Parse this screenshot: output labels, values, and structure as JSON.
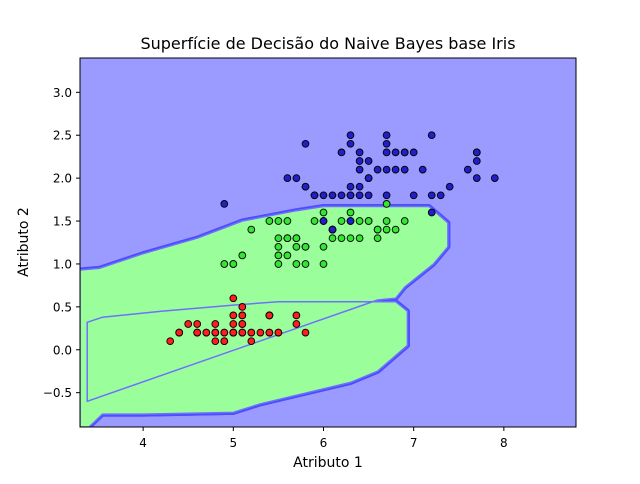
{
  "chart_data": {
    "type": "scatter",
    "title": "Superfície de Decisão do Naive Bayes base Iris",
    "xlabel": "Atributo 1",
    "ylabel": "Atributo 2",
    "xlim": [
      3.3,
      8.8
    ],
    "ylim": [
      -0.9,
      3.4
    ],
    "x_ticks": [
      4,
      5,
      6,
      7,
      8
    ],
    "y_ticks": [
      -0.5,
      0.0,
      0.5,
      1.0,
      1.5,
      2.0,
      2.5,
      3.0
    ],
    "x_tick_labels": [
      "4",
      "5",
      "6",
      "7",
      "8"
    ],
    "y_tick_labels": [
      "−0.5",
      "0.0",
      "0.5",
      "1.0",
      "1.5",
      "2.0",
      "2.5",
      "3.0"
    ],
    "grid": false,
    "legend": "none",
    "regions": [
      {
        "class": "0",
        "color": "#ff9a9a",
        "polygon": [
          [
            3.55,
            -0.75
          ],
          [
            3.38,
            -0.6
          ],
          [
            3.38,
            0.32
          ],
          [
            3.55,
            0.38
          ],
          [
            4.2,
            0.45
          ],
          [
            5.0,
            0.52
          ],
          [
            5.5,
            0.56
          ],
          [
            6.8,
            0.56
          ],
          [
            6.93,
            0.45
          ],
          [
            6.93,
            0.05
          ],
          [
            6.6,
            -0.25
          ],
          [
            6.3,
            -0.38
          ],
          [
            5.9,
            -0.48
          ],
          [
            5.3,
            -0.63
          ],
          [
            5.0,
            -0.73
          ],
          [
            4.0,
            -0.75
          ]
        ]
      },
      {
        "class": "1",
        "color": "#9aff9a",
        "polygon": [
          [
            3.38,
            -0.6
          ],
          [
            3.38,
            0.32
          ],
          [
            3.55,
            0.38
          ],
          [
            4.2,
            0.45
          ],
          [
            5.0,
            0.52
          ],
          [
            5.5,
            0.56
          ],
          [
            6.8,
            0.56
          ],
          [
            6.93,
            0.45
          ],
          [
            6.93,
            0.05
          ],
          [
            6.6,
            -0.25
          ],
          [
            6.3,
            -0.38
          ],
          [
            5.9,
            -0.48
          ],
          [
            5.3,
            -0.63
          ],
          [
            5.0,
            -0.73
          ],
          [
            4.0,
            -0.75
          ],
          [
            3.55,
            -0.75
          ],
          [
            3.4,
            -0.9
          ],
          [
            3.3,
            -0.9
          ],
          [
            3.3,
            0.93
          ],
          [
            3.52,
            0.95
          ],
          [
            4.0,
            1.12
          ],
          [
            4.6,
            1.3
          ],
          [
            5.1,
            1.5
          ],
          [
            5.7,
            1.62
          ],
          [
            6.0,
            1.67
          ],
          [
            7.17,
            1.67
          ],
          [
            7.38,
            1.48
          ],
          [
            7.38,
            1.2
          ],
          [
            7.22,
            1.0
          ],
          [
            6.9,
            0.73
          ],
          [
            6.8,
            0.6
          ],
          [
            6.6,
            0.58
          ]
        ]
      }
    ],
    "background_color": "#9a9aff",
    "series": [
      {
        "color": "#ff1e1e",
        "points": [
          [
            5.1,
            0.2
          ],
          [
            4.9,
            0.2
          ],
          [
            4.7,
            0.2
          ],
          [
            4.6,
            0.2
          ],
          [
            5.0,
            0.2
          ],
          [
            5.4,
            0.4
          ],
          [
            4.6,
            0.3
          ],
          [
            5.0,
            0.2
          ],
          [
            4.4,
            0.2
          ],
          [
            4.9,
            0.1
          ],
          [
            5.4,
            0.2
          ],
          [
            4.8,
            0.2
          ],
          [
            4.8,
            0.1
          ],
          [
            4.3,
            0.1
          ],
          [
            5.8,
            0.2
          ],
          [
            5.7,
            0.4
          ],
          [
            5.4,
            0.4
          ],
          [
            5.1,
            0.3
          ],
          [
            5.7,
            0.3
          ],
          [
            5.1,
            0.3
          ],
          [
            5.4,
            0.2
          ],
          [
            5.1,
            0.4
          ],
          [
            4.6,
            0.2
          ],
          [
            5.1,
            0.5
          ],
          [
            4.8,
            0.2
          ],
          [
            5.0,
            0.2
          ],
          [
            5.0,
            0.4
          ],
          [
            5.2,
            0.2
          ],
          [
            5.2,
            0.2
          ],
          [
            4.7,
            0.2
          ],
          [
            4.8,
            0.2
          ],
          [
            5.4,
            0.4
          ],
          [
            5.2,
            0.1
          ],
          [
            5.5,
            0.2
          ],
          [
            4.9,
            0.2
          ],
          [
            5.0,
            0.2
          ],
          [
            5.5,
            0.2
          ],
          [
            4.9,
            0.1
          ],
          [
            4.4,
            0.2
          ],
          [
            5.1,
            0.2
          ],
          [
            5.0,
            0.3
          ],
          [
            4.5,
            0.3
          ],
          [
            4.4,
            0.2
          ],
          [
            5.0,
            0.6
          ],
          [
            5.1,
            0.4
          ],
          [
            4.8,
            0.3
          ],
          [
            5.1,
            0.2
          ],
          [
            4.6,
            0.2
          ],
          [
            5.3,
            0.2
          ],
          [
            5.0,
            0.2
          ]
        ]
      },
      {
        "color": "#32e632",
        "points": [
          [
            5.5,
            1.5
          ],
          [
            6.5,
            1.5
          ],
          [
            5.7,
            1.3
          ],
          [
            6.3,
            1.6
          ],
          [
            4.9,
            1.0
          ],
          [
            6.6,
            1.3
          ],
          [
            5.2,
            1.4
          ],
          [
            5.0,
            1.0
          ],
          [
            5.9,
            1.5
          ],
          [
            6.0,
            1.0
          ],
          [
            6.1,
            1.4
          ],
          [
            5.6,
            1.3
          ],
          [
            6.7,
            1.4
          ],
          [
            5.6,
            1.5
          ],
          [
            5.8,
            1.0
          ],
          [
            6.2,
            1.5
          ],
          [
            5.6,
            1.1
          ],
          [
            5.9,
            1.8
          ],
          [
            6.1,
            1.3
          ],
          [
            6.3,
            1.5
          ],
          [
            6.4,
            1.3
          ],
          [
            6.6,
            1.4
          ],
          [
            6.8,
            1.4
          ],
          [
            6.7,
            1.7
          ],
          [
            5.7,
            1.0
          ],
          [
            5.5,
            1.1
          ],
          [
            5.5,
            1.0
          ],
          [
            5.8,
            1.2
          ],
          [
            5.4,
            1.5
          ],
          [
            6.0,
            1.6
          ],
          [
            6.7,
            1.5
          ],
          [
            5.6,
            1.3
          ],
          [
            5.5,
            1.3
          ],
          [
            5.5,
            1.2
          ],
          [
            6.1,
            1.4
          ],
          [
            5.8,
            1.2
          ],
          [
            5.0,
            1.0
          ],
          [
            5.6,
            1.3
          ],
          [
            5.7,
            1.2
          ],
          [
            5.7,
            1.3
          ],
          [
            6.2,
            1.3
          ],
          [
            5.1,
            1.1
          ],
          [
            5.7,
            1.3
          ],
          [
            6.9,
            1.5
          ],
          [
            6.0,
            1.5
          ],
          [
            6.4,
            1.5
          ],
          [
            6.3,
            1.3
          ],
          [
            6.5,
            1.5
          ],
          [
            6.6,
            1.4
          ],
          [
            6.1,
            1.4
          ],
          [
            6.0,
            1.2
          ]
        ]
      },
      {
        "color": "#2020c8",
        "points": [
          [
            6.3,
            2.5
          ],
          [
            5.8,
            1.9
          ],
          [
            7.1,
            2.1
          ],
          [
            6.3,
            1.8
          ],
          [
            6.5,
            2.2
          ],
          [
            7.6,
            2.1
          ],
          [
            4.9,
            1.7
          ],
          [
            7.3,
            1.8
          ],
          [
            6.7,
            1.8
          ],
          [
            7.2,
            2.5
          ],
          [
            6.5,
            2.0
          ],
          [
            6.4,
            1.9
          ],
          [
            6.8,
            2.1
          ],
          [
            5.7,
            2.0
          ],
          [
            5.8,
            2.4
          ],
          [
            6.4,
            2.3
          ],
          [
            6.5,
            1.8
          ],
          [
            7.7,
            2.2
          ],
          [
            7.7,
            2.3
          ],
          [
            6.0,
            1.5
          ],
          [
            6.9,
            2.3
          ],
          [
            5.6,
            2.0
          ],
          [
            7.7,
            2.0
          ],
          [
            6.3,
            1.8
          ],
          [
            6.7,
            2.1
          ],
          [
            7.2,
            1.8
          ],
          [
            6.2,
            1.8
          ],
          [
            6.1,
            1.8
          ],
          [
            6.4,
            2.1
          ],
          [
            7.2,
            1.6
          ],
          [
            7.4,
            1.9
          ],
          [
            7.9,
            2.0
          ],
          [
            6.4,
            2.2
          ],
          [
            6.3,
            1.5
          ],
          [
            6.1,
            1.4
          ],
          [
            7.7,
            2.3
          ],
          [
            6.3,
            2.4
          ],
          [
            6.4,
            1.8
          ],
          [
            6.0,
            1.8
          ],
          [
            6.9,
            2.1
          ],
          [
            6.7,
            2.4
          ],
          [
            6.9,
            2.3
          ],
          [
            5.8,
            1.9
          ],
          [
            6.8,
            2.3
          ],
          [
            6.7,
            2.5
          ],
          [
            6.7,
            2.3
          ],
          [
            6.3,
            1.9
          ],
          [
            6.5,
            2.0
          ],
          [
            6.2,
            2.3
          ],
          [
            5.9,
            1.8
          ],
          [
            7.0,
            2.3
          ],
          [
            6.6,
            2.1
          ],
          [
            7.0,
            1.8
          ]
        ]
      }
    ]
  }
}
